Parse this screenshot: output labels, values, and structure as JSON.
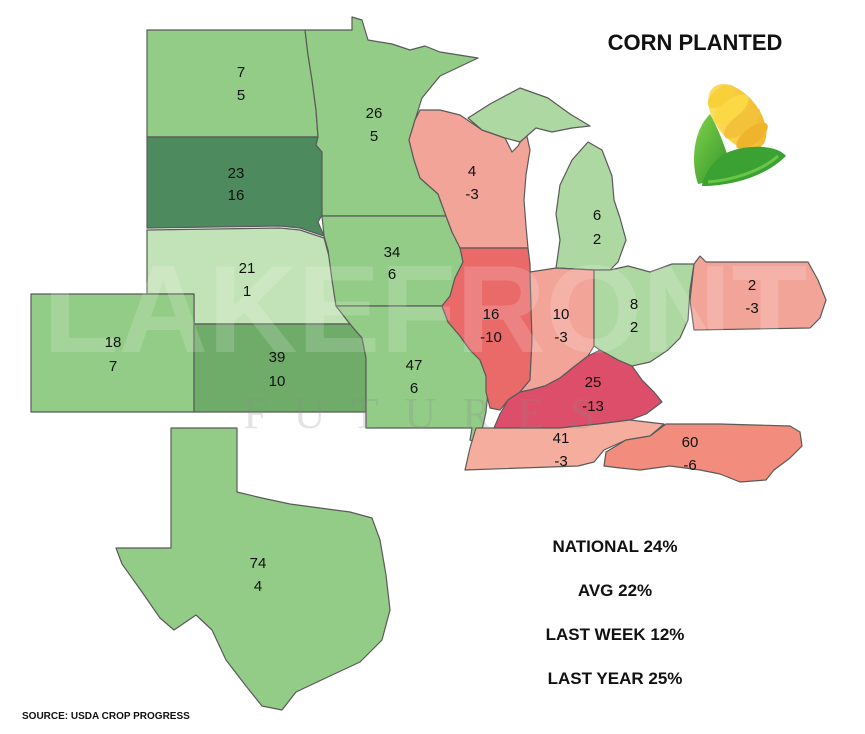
{
  "title": "CORN PLANTED",
  "watermark": {
    "main": "LAKEFRONT",
    "sub": "FUTURES"
  },
  "icon": "corn-icon",
  "states": [
    {
      "id": "north-dakota",
      "current": "7",
      "change": "5",
      "color": "#93cc87"
    },
    {
      "id": "south-dakota",
      "current": "23",
      "change": "16",
      "color": "#4d8a5e"
    },
    {
      "id": "nebraska",
      "current": "21",
      "change": "1",
      "color": "#c2e3b7"
    },
    {
      "id": "colorado",
      "current": "18",
      "change": "7",
      "color": "#93cc87"
    },
    {
      "id": "kansas",
      "current": "39",
      "change": "10",
      "color": "#6fac6a"
    },
    {
      "id": "minnesota",
      "current": "26",
      "change": "5",
      "color": "#93cc87"
    },
    {
      "id": "iowa",
      "current": "34",
      "change": "6",
      "color": "#93cc87"
    },
    {
      "id": "missouri",
      "current": "47",
      "change": "6",
      "color": "#93cc87"
    },
    {
      "id": "wisconsin",
      "current": "4",
      "change": "-3",
      "color": "#f3a498"
    },
    {
      "id": "illinois",
      "current": "16",
      "change": "-10",
      "color": "#ea6a6a"
    },
    {
      "id": "michigan",
      "current": "6",
      "change": "2",
      "color": "#add8a1"
    },
    {
      "id": "indiana",
      "current": "10",
      "change": "-3",
      "color": "#f3a498"
    },
    {
      "id": "ohio",
      "current": "8",
      "change": "2",
      "color": "#add8a1"
    },
    {
      "id": "pennsylvania",
      "current": "2",
      "change": "-3",
      "color": "#f3a498"
    },
    {
      "id": "kentucky",
      "current": "25",
      "change": "-13",
      "color": "#dd4e6a"
    },
    {
      "id": "tennessee",
      "current": "41",
      "change": "-3",
      "color": "#f5ae9d"
    },
    {
      "id": "north-carolina",
      "current": "60",
      "change": "-6",
      "color": "#f28d7e"
    },
    {
      "id": "texas",
      "current": "74",
      "change": "4",
      "color": "#93cc87"
    }
  ],
  "stats": [
    {
      "label": "NATIONAL 24%"
    },
    {
      "label": "AVG 22%"
    },
    {
      "label": "LAST WEEK 12%"
    },
    {
      "label": "LAST YEAR 25%"
    }
  ],
  "source": "SOURCE: USDA CROP PROGRESS"
}
